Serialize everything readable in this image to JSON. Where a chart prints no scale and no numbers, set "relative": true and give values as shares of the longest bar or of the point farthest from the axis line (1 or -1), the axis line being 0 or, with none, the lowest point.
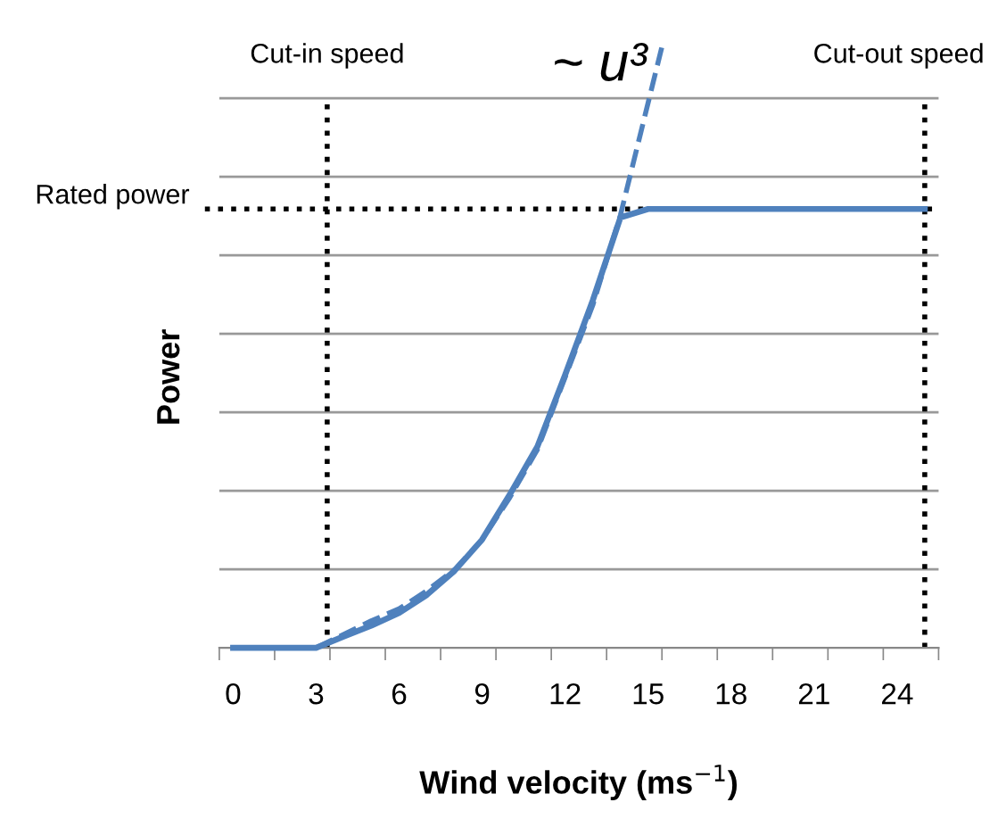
{
  "chart_data": {
    "type": "line",
    "relative": true,
    "xlabel": "Wind velocity (ms$^{−1}$)",
    "ylabel": "Power",
    "xlim": [
      -0.5,
      25.5
    ],
    "xticks": [
      0,
      3,
      6,
      9,
      12,
      15,
      18,
      21,
      24,
      {
        "value": -0.5,
        "label": null
      },
      {
        "value": 1.5,
        "label": null
      },
      {
        "value": 3.5,
        "label": null
      },
      {
        "value": 5.5,
        "label": null
      },
      {
        "value": 7.5,
        "label": null
      },
      {
        "value": 9.5,
        "label": null
      },
      {
        "value": 11.5,
        "label": null
      },
      {
        "value": 13.5,
        "label": null
      },
      {
        "value": 15.5,
        "label": null
      },
      {
        "value": 17.5,
        "label": null
      },
      {
        "value": 19.5,
        "label": null
      },
      {
        "value": 21.5,
        "label": null
      },
      {
        "value": 23.5,
        "label": null
      },
      {
        "value": 25.5,
        "label": null
      }
    ],
    "series": [
      {
        "color": "#4f81bd",
        "line_style": "solid",
        "x": [
          0,
          3,
          4,
          5,
          6,
          7,
          8,
          9,
          10,
          11,
          12,
          13,
          14,
          15,
          25
        ],
        "values": [
          0,
          0,
          0.019,
          0.037,
          0.058,
          0.088,
          0.128,
          0.18,
          0.255,
          0.335,
          0.454,
          0.578,
          0.716,
          0.73,
          0.73
        ]
      },
      {
        "color": "#4f81bd",
        "line_style": "dashed",
        "x": [
          3,
          5,
          6,
          7,
          8,
          9,
          10,
          11,
          12,
          13,
          14,
          15.5
        ],
        "values": [
          0,
          0.045,
          0.065,
          0.095,
          0.13,
          0.18,
          0.25,
          0.33,
          0.45,
          0.57,
          0.72,
          1
        ]
      }
    ],
    "ref_lines": [
      {
        "axis": "x",
        "value": 3.4,
        "label": "Cut-in speed",
        "line_style": "dotted",
        "color": "#000000"
      },
      {
        "axis": "x",
        "value": 25,
        "label": "Cut-out speed",
        "line_style": "dotted",
        "color": "#000000"
      },
      {
        "axis": "y",
        "value": 0.73,
        "label": "Rated power",
        "line_style": "dotted",
        "color": "#000000"
      }
    ],
    "annotations": [
      {
        "text": "~ u³",
        "x": 15.5,
        "y": 1
      }
    ],
    "grid": "y",
    "legend": false,
    "marker": "none"
  }
}
